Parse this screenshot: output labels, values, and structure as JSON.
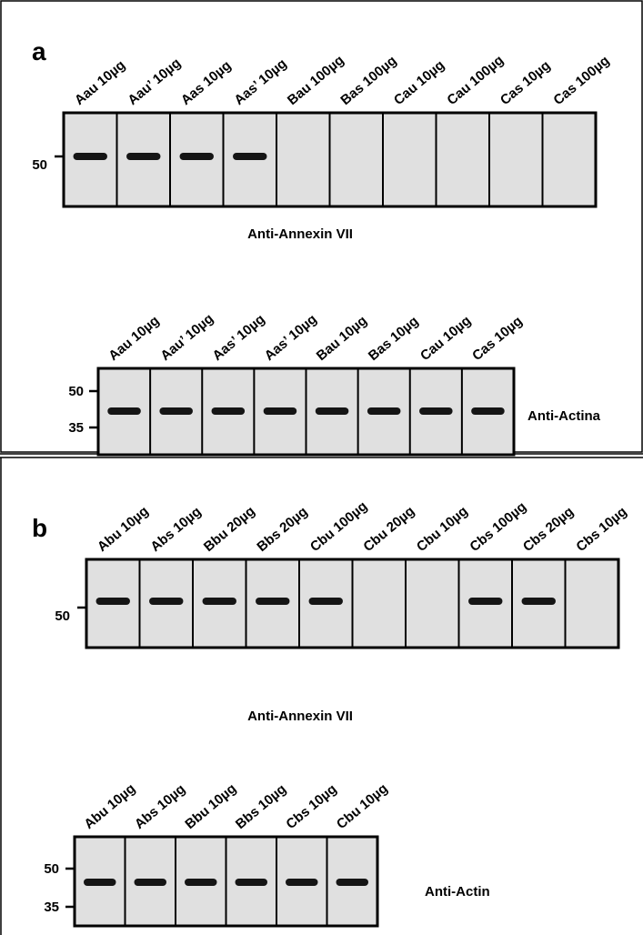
{
  "panels": [
    {
      "letter": "a",
      "blots": [
        {
          "lanes": [
            "Aau 10µg",
            "Aau’ 10µg",
            "Aas 10µg",
            "Aas’ 10µg",
            "Bau 100µg",
            "Bas 100µg",
            "Cau 10µg",
            "Cau 100µg",
            "Cas 10µg",
            "Cas 100µg"
          ],
          "markers": [
            "50"
          ],
          "antibody": "Anti-Annexin VII"
        },
        {
          "lanes": [
            "Aau 10µg",
            "Aau’ 10µg",
            "Aas’ 10µg",
            "Aas’ 10µg",
            "Bau 10µg",
            "Bas 10µg",
            "Cau 10µg",
            "Cas 10µg"
          ],
          "markers": [
            "50",
            "35"
          ],
          "antibody": "Anti-Actina"
        }
      ]
    },
    {
      "letter": "b",
      "blots": [
        {
          "lanes": [
            "Abu 10µg",
            "Abs 10µg",
            "Bbu 20µg",
            "Bbs 20µg",
            "Cbu 100µg",
            "Cbu 20µg",
            "Cbu 10µg",
            "Cbs 100µg",
            "Cbs 20µg",
            "Cbs 10µg"
          ],
          "markers": [
            "50"
          ],
          "antibody": "Anti-Annexin VII"
        },
        {
          "lanes": [
            "Abu 10µg",
            "Abs 10µg",
            "Bbu 10µg",
            "Bbs 10µg",
            "Cbs 10µg",
            "Cbu 10µg"
          ],
          "markers": [
            "50",
            "35"
          ],
          "antibody": "Anti-Actin"
        }
      ]
    }
  ]
}
